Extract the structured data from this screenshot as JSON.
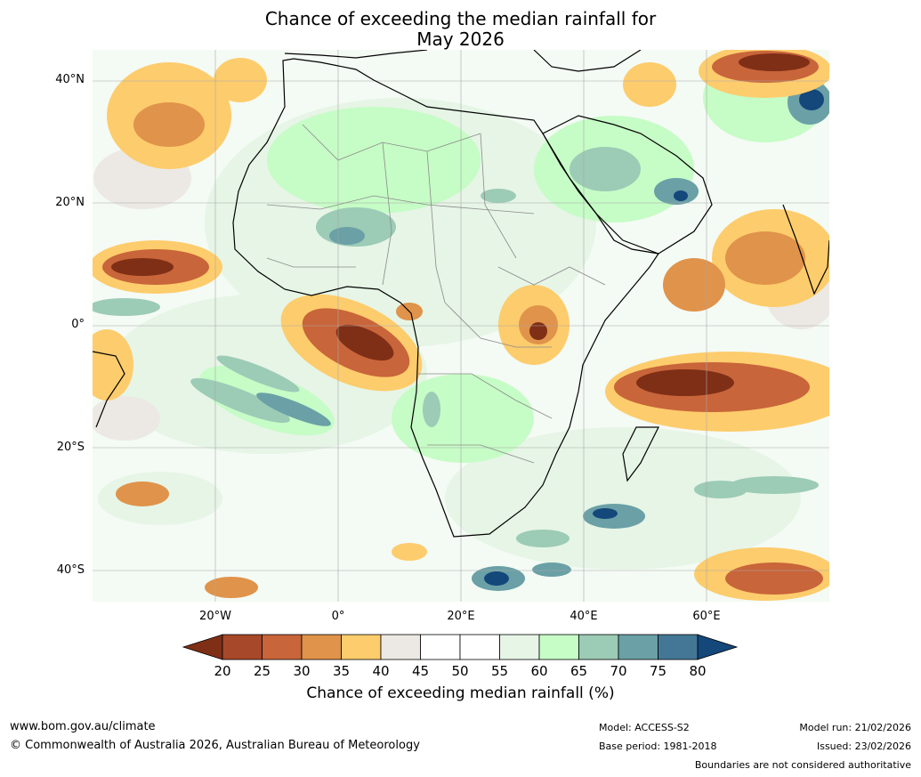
{
  "title_line1": "Chance of exceeding the median rainfall for",
  "title_line2": "May 2026",
  "axes": {
    "lat_labels": [
      "40°N",
      "20°N",
      "0°",
      "20°S",
      "40°S"
    ],
    "lon_labels": [
      "20°W",
      "0°",
      "20°E",
      "40°E",
      "60°E"
    ]
  },
  "colorbar": {
    "ticks": [
      "20",
      "25",
      "30",
      "35",
      "40",
      "45",
      "50",
      "55",
      "60",
      "65",
      "70",
      "75",
      "80"
    ],
    "colors": [
      "#7f2f16",
      "#a8482a",
      "#c8653a",
      "#e0934a",
      "#fdcc6c",
      "#ece9e4",
      "#ffffff",
      "#ffffff",
      "#e6f5e6",
      "#c6fcc6",
      "#9ccbb6",
      "#6aa0a6",
      "#437795",
      "#14477a"
    ],
    "label": "Chance of exceeding median rainfall (%)"
  },
  "footer": {
    "website": "www.bom.gov.au/climate",
    "copyright": "© Commonwealth of Australia 2026, Australian Bureau of Meteorology",
    "model": "Model: ACCESS-S2",
    "base_period": "Base period: 1981-2018",
    "model_run": "Model run: 21/02/2026",
    "issued": "Issued: 23/02/2026",
    "disclaimer": "Boundaries are not considered authoritative"
  }
}
